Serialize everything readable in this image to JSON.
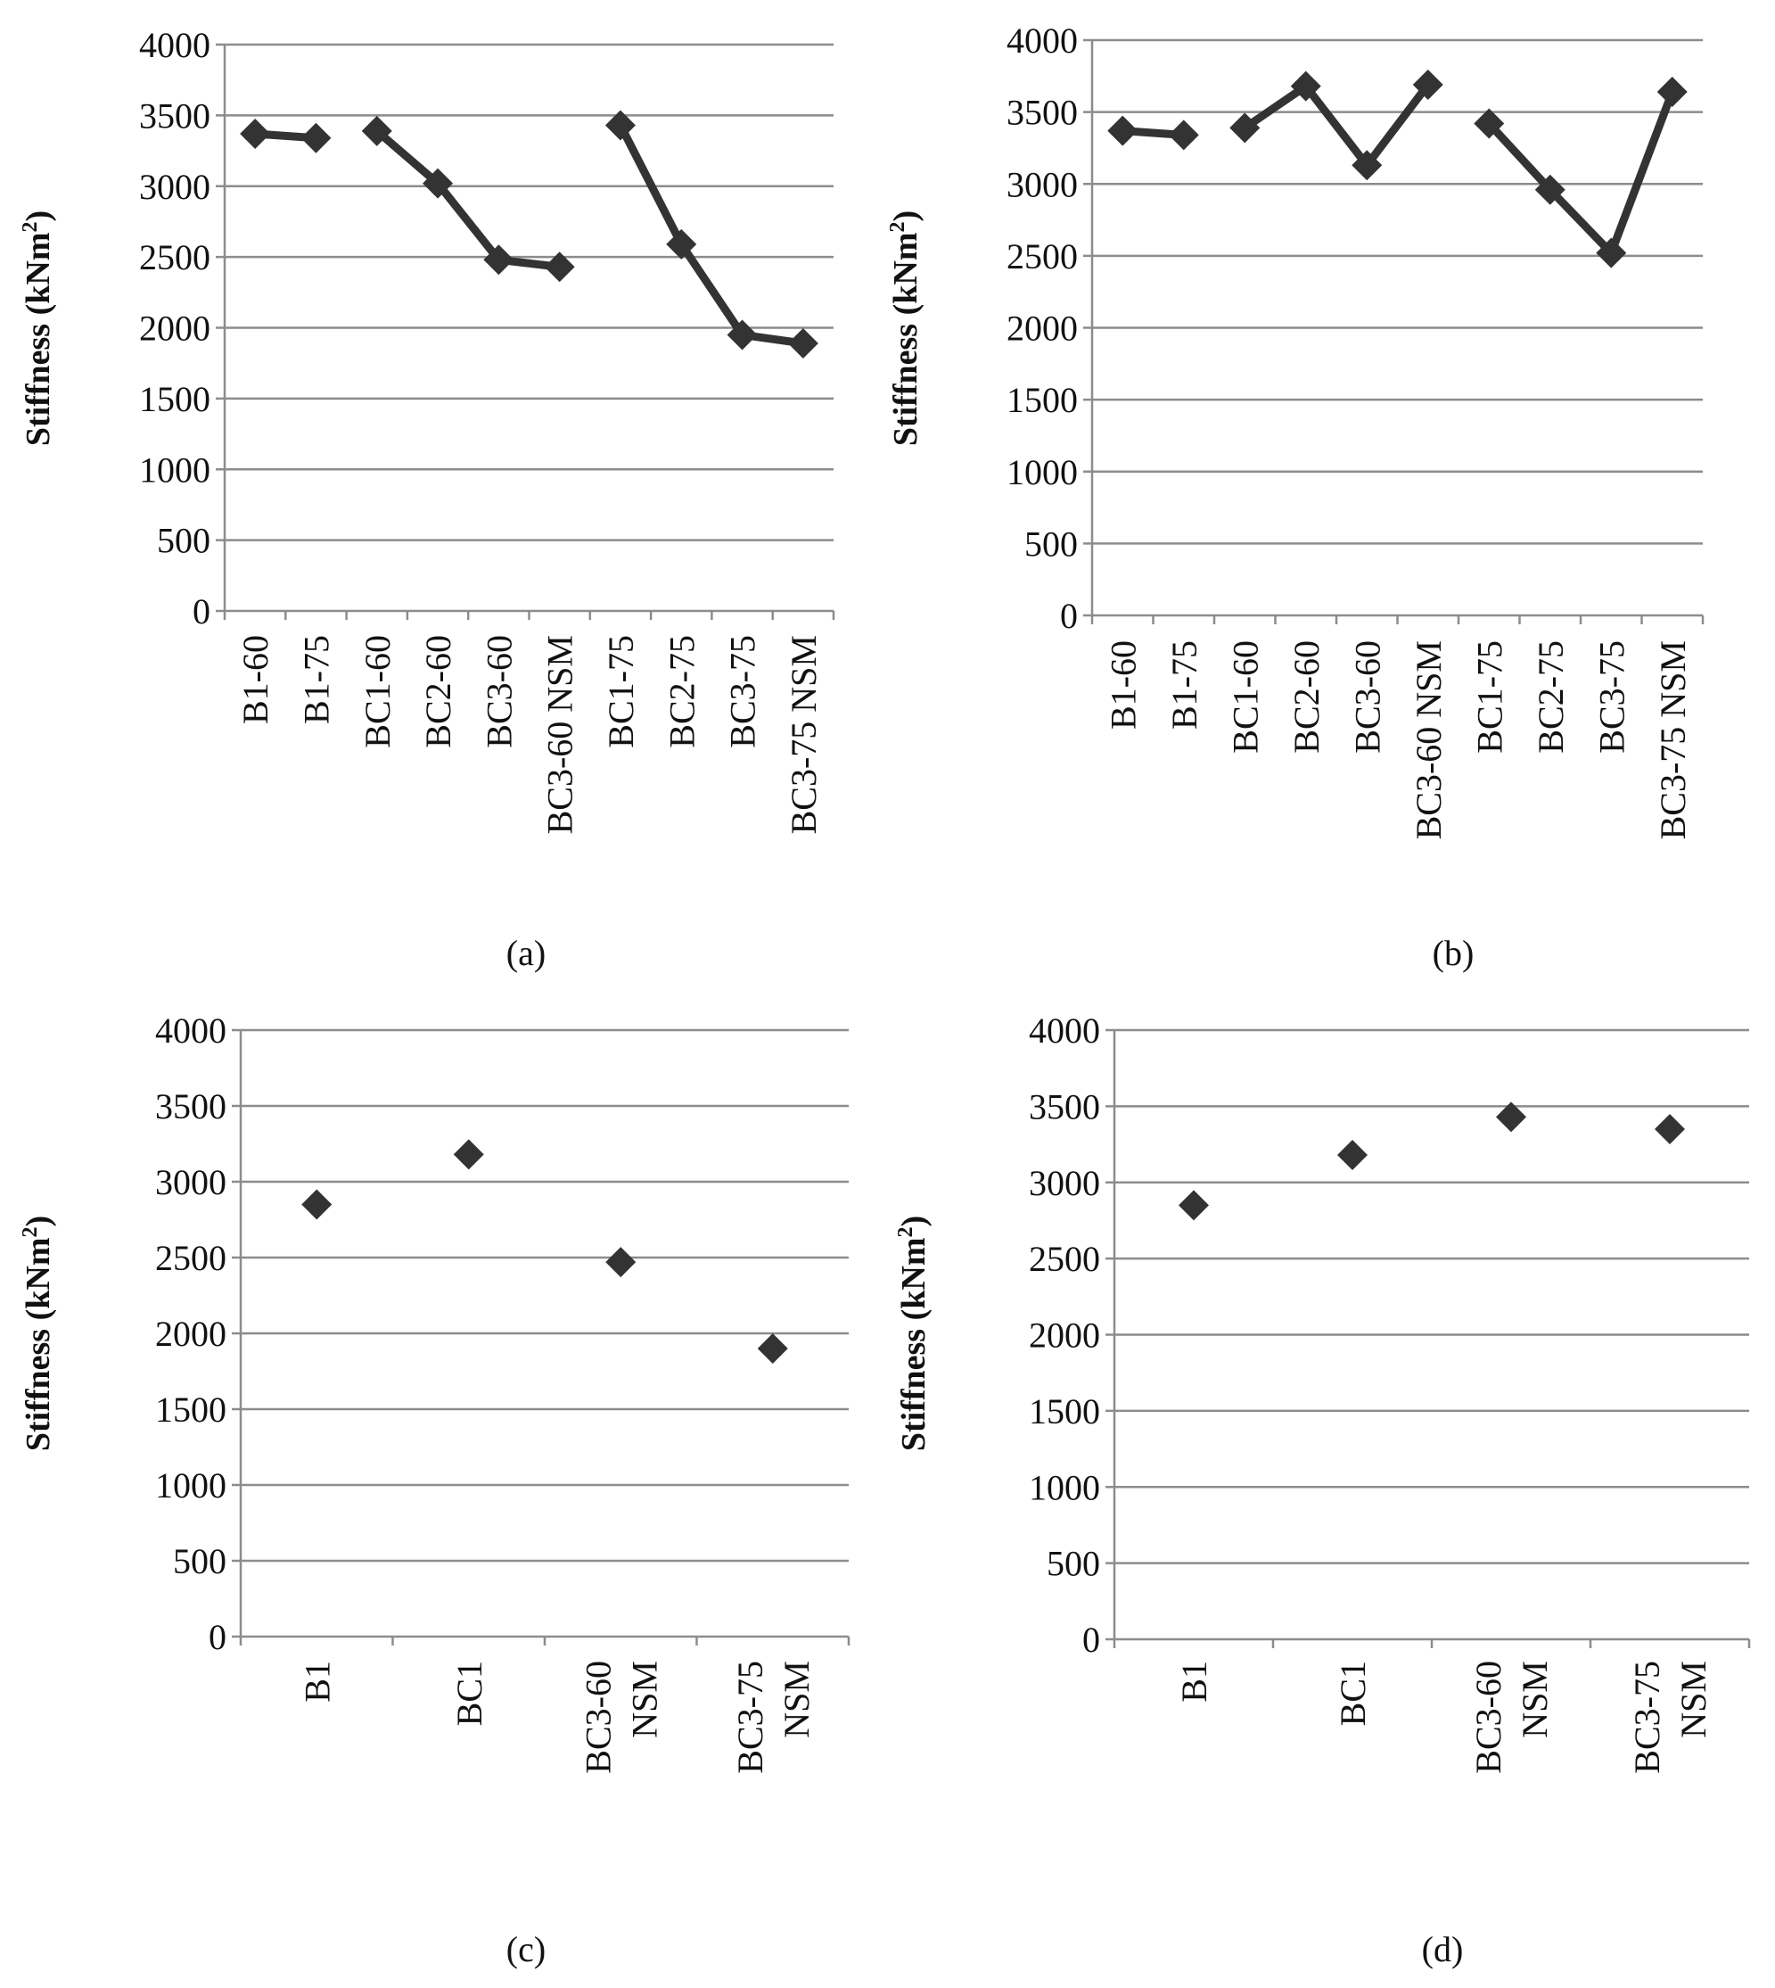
{
  "figure": {
    "colors": {
      "series": "#333333",
      "grid": "#8c8c8c",
      "text": "#111111",
      "background": "#ffffff"
    }
  },
  "chart_data": [
    {
      "id": "a",
      "caption": "(a)",
      "type": "line",
      "ylabel": "Stiffness (kNm",
      "ylabel_sup": "2",
      "ylabel_close": ")",
      "ylim": [
        0,
        4000
      ],
      "yticks": [
        "0",
        "500",
        "1000",
        "1500",
        "2000",
        "2500",
        "3000",
        "3500",
        "4000"
      ],
      "grid": true,
      "categories": [
        [
          "B1-60"
        ],
        [
          "B1-75"
        ],
        [
          "BC1-60"
        ],
        [
          "BC2-60"
        ],
        [
          "BC3-60"
        ],
        [
          "BC3-60 NSM"
        ],
        [
          "BC1-75"
        ],
        [
          "BC2-75"
        ],
        [
          "BC3-75"
        ],
        [
          "BC3-75 NSM"
        ]
      ],
      "series": [
        {
          "name": "Stiffness",
          "values": [
            3370,
            3340,
            3390,
            3020,
            2480,
            2430,
            3430,
            2590,
            1950,
            1890
          ]
        }
      ],
      "line_segments": [
        [
          0,
          1
        ],
        [
          2,
          5
        ],
        [
          6,
          9
        ]
      ],
      "markers": "diamond"
    },
    {
      "id": "b",
      "caption": "(b)",
      "type": "line",
      "ylabel": "Stiffness (kNm",
      "ylabel_sup": "2",
      "ylabel_close": ")",
      "ylim": [
        0,
        4000
      ],
      "yticks": [
        "0",
        "500",
        "1000",
        "1500",
        "2000",
        "2500",
        "3000",
        "3500",
        "4000"
      ],
      "grid": true,
      "categories": [
        [
          "B1-60"
        ],
        [
          "B1-75"
        ],
        [
          "BC1-60"
        ],
        [
          "BC2-60"
        ],
        [
          "BC3-60"
        ],
        [
          "BC3-60 NSM"
        ],
        [
          "BC1-75"
        ],
        [
          "BC2-75"
        ],
        [
          "BC3-75"
        ],
        [
          "BC3-75 NSM"
        ]
      ],
      "series": [
        {
          "name": "Stiffness",
          "values": [
            3370,
            3340,
            3390,
            3680,
            3130,
            3690,
            3420,
            2960,
            2520,
            3640
          ]
        }
      ],
      "line_segments": [
        [
          0,
          1
        ],
        [
          2,
          5
        ],
        [
          6,
          9
        ]
      ],
      "markers": "diamond"
    },
    {
      "id": "c",
      "caption": "(c)",
      "type": "scatter",
      "ylabel": "Stiffness (kNm",
      "ylabel_sup": "2",
      "ylabel_close": ")",
      "ylim": [
        0,
        4000
      ],
      "yticks": [
        "0",
        "500",
        "1000",
        "1500",
        "2000",
        "2500",
        "3000",
        "3500",
        "4000"
      ],
      "grid": true,
      "categories": [
        [
          "B1"
        ],
        [
          "BC1"
        ],
        [
          "BC3-60",
          "NSM"
        ],
        [
          "BC3-75",
          "NSM"
        ]
      ],
      "series": [
        {
          "name": "Stiffness",
          "values": [
            2850,
            3180,
            2470,
            1900
          ]
        }
      ],
      "line_segments": [],
      "markers": "diamond"
    },
    {
      "id": "d",
      "caption": "(d)",
      "type": "scatter",
      "ylabel": "Stiffness (kNm",
      "ylabel_sup": "2",
      "ylabel_close": ")",
      "ylim": [
        0,
        4000
      ],
      "yticks": [
        "0",
        "500",
        "1000",
        "1500",
        "2000",
        "2500",
        "3000",
        "3500",
        "4000"
      ],
      "grid": true,
      "categories": [
        [
          "B1"
        ],
        [
          "BC1"
        ],
        [
          "BC3-60",
          "NSM"
        ],
        [
          "BC3-75",
          "NSM"
        ]
      ],
      "series": [
        {
          "name": "Stiffness",
          "values": [
            2850,
            3180,
            3430,
            3350
          ]
        }
      ],
      "line_segments": [],
      "markers": "diamond"
    }
  ]
}
